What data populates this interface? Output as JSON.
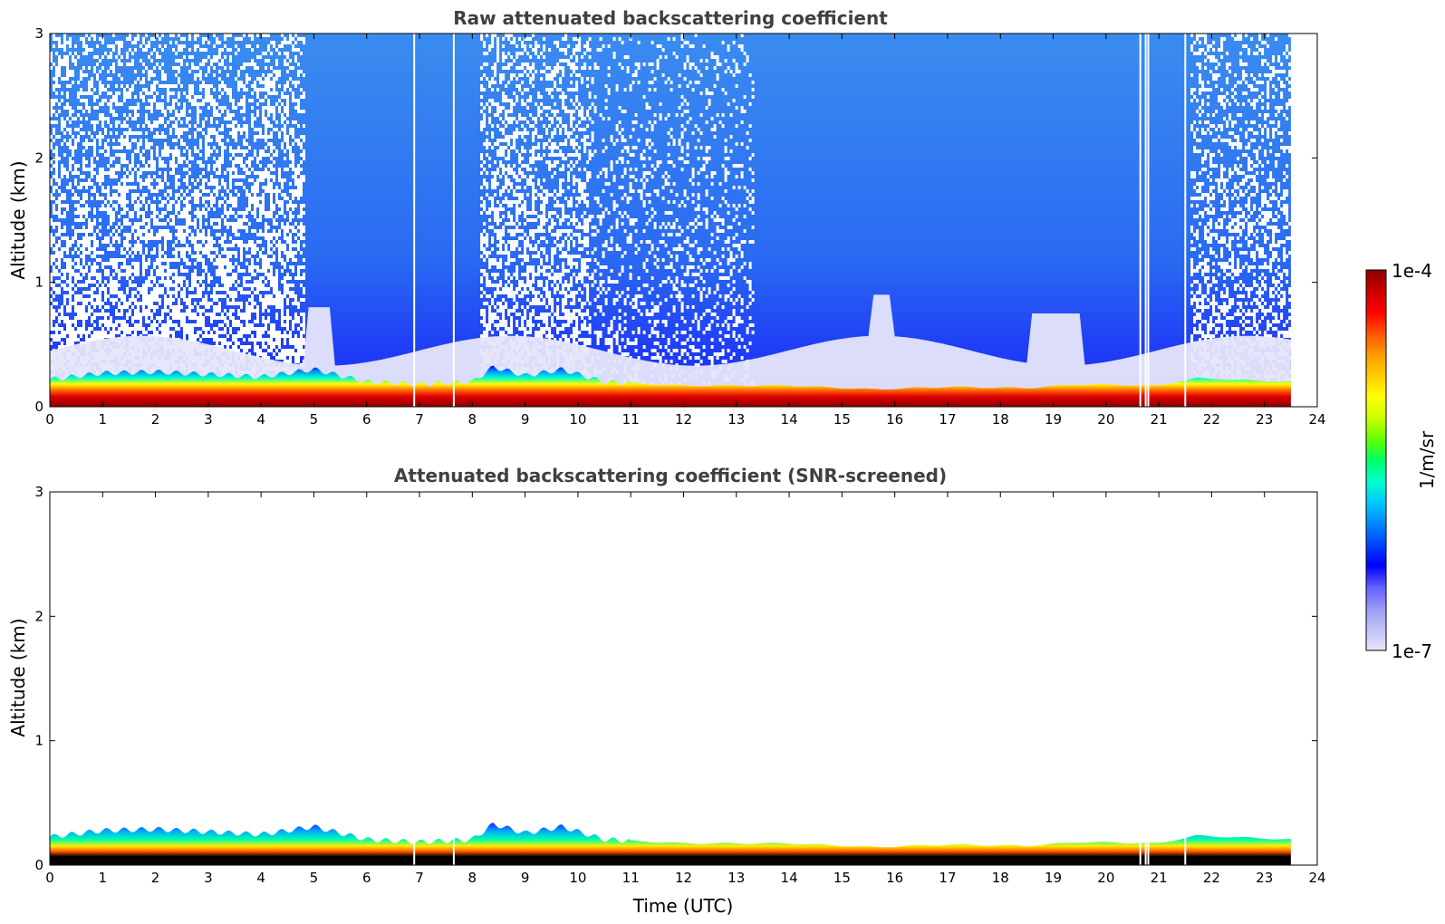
{
  "chart_data": [
    {
      "type": "heatmap",
      "title": "Raw attenuated backscattering coefficient",
      "xlabel": "",
      "ylabel": "Altitude (km)",
      "xlim": [
        0,
        24
      ],
      "ylim": [
        0,
        3
      ],
      "xticks": [
        "0",
        "1",
        "2",
        "3",
        "4",
        "5",
        "6",
        "7",
        "8",
        "9",
        "10",
        "11",
        "12",
        "13",
        "14",
        "15",
        "16",
        "17",
        "18",
        "19",
        "20",
        "21",
        "22",
        "23",
        "24"
      ],
      "yticks": [
        "0",
        "1",
        "2",
        "3"
      ],
      "data_end_time": 23.5,
      "boundary_layer_top_km": [
        [
          0,
          0.22
        ],
        [
          1,
          0.27
        ],
        [
          2,
          0.28
        ],
        [
          3,
          0.26
        ],
        [
          4,
          0.24
        ],
        [
          5,
          0.3
        ],
        [
          6,
          0.2
        ],
        [
          7,
          0.18
        ],
        [
          8,
          0.2
        ],
        [
          8.4,
          0.32
        ],
        [
          9,
          0.25
        ],
        [
          9.7,
          0.3
        ],
        [
          10.5,
          0.2
        ],
        [
          12,
          0.17
        ],
        [
          14,
          0.17
        ],
        [
          15.6,
          0.14
        ],
        [
          17,
          0.16
        ],
        [
          18.5,
          0.15
        ],
        [
          19.5,
          0.18
        ],
        [
          21,
          0.17
        ],
        [
          21.7,
          0.23
        ],
        [
          23.5,
          0.2
        ]
      ],
      "missing_profiles_utc": [
        6.9,
        7.65,
        20.65,
        20.75,
        20.8,
        21.5
      ]
    },
    {
      "type": "heatmap",
      "title": "Attenuated backscattering coefficient (SNR-screened)",
      "xlabel": "Time (UTC)",
      "ylabel": "Altitude (km)",
      "xlim": [
        0,
        24
      ],
      "ylim": [
        0,
        3
      ],
      "xticks": [
        "0",
        "1",
        "2",
        "3",
        "4",
        "5",
        "6",
        "7",
        "8",
        "9",
        "10",
        "11",
        "12",
        "13",
        "14",
        "15",
        "16",
        "17",
        "18",
        "19",
        "20",
        "21",
        "22",
        "23",
        "24"
      ],
      "yticks": [
        "0",
        "1",
        "2",
        "3"
      ],
      "data_end_time": 23.5
    }
  ],
  "colorbar": {
    "label": "1/m/sr",
    "min_label": "1e-7",
    "max_label": "1e-4",
    "colors": [
      "#e6e6fa",
      "#c0c0f8",
      "#9999f5",
      "#6060ff",
      "#0000ff",
      "#0044ff",
      "#0088ff",
      "#00c8ff",
      "#00ffcc",
      "#00ff66",
      "#66ff00",
      "#ccff00",
      "#ffff00",
      "#ffcc00",
      "#ff9900",
      "#ff5500",
      "#ff0000",
      "#cc0000",
      "#8b0000"
    ]
  }
}
